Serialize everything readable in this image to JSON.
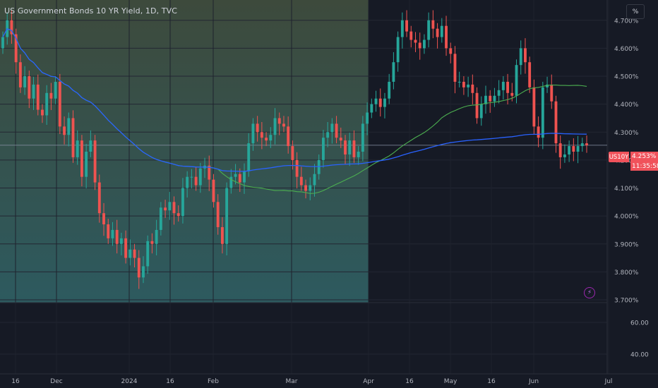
{
  "header": {
    "title": "US Government Bonds 10 YR Yield, 1D, TVC"
  },
  "toolbar": {
    "percent_button": "%"
  },
  "price_label": {
    "symbol": "US10Y",
    "price": "4.253%",
    "countdown": "11:35:58"
  },
  "colors": {
    "up": "#26a69a",
    "down": "#ef5350",
    "ma_short": "#4caf50",
    "ma_long": "#2962ff",
    "range_top": "#3c4a3c",
    "range_bottom": "#2e5a5e"
  },
  "chart_data": {
    "type": "candlestick",
    "title": "US Government Bonds 10 YR Yield, 1D, TVC",
    "x_ticks": [
      "16",
      "Dec",
      "2024",
      "16",
      "Feb",
      "Mar",
      "Apr",
      "16",
      "May",
      "16",
      "Jun",
      "Jul"
    ],
    "y_ticks": [
      "4.700%",
      "4.600%",
      "4.500%",
      "4.400%",
      "4.300%",
      "4.200%",
      "4.100%",
      "4.000%",
      "3.900%",
      "3.800%",
      "3.700%"
    ],
    "ylim": [
      3.7,
      4.76
    ],
    "indicator_pane": {
      "y_ticks": [
        "60.00",
        "40.00"
      ],
      "ylim": [
        32,
        72
      ]
    },
    "last_value": 4.253,
    "closes": [
      4.64,
      4.7,
      4.65,
      4.55,
      4.46,
      4.5,
      4.42,
      4.47,
      4.38,
      4.36,
      4.44,
      4.42,
      4.48,
      4.32,
      4.29,
      4.35,
      4.21,
      4.27,
      4.14,
      4.23,
      4.27,
      4.12,
      4.01,
      3.97,
      3.92,
      3.95,
      3.9,
      3.92,
      3.85,
      3.88,
      3.85,
      3.78,
      3.82,
      3.91,
      3.9,
      3.95,
      4.03,
      4.02,
      4.05,
      4.01,
      4.0,
      4.1,
      4.14,
      4.14,
      4.11,
      4.17,
      4.18,
      4.13,
      4.05,
      3.96,
      3.9,
      4.1,
      4.14,
      4.15,
      4.12,
      4.16,
      4.26,
      4.33,
      4.3,
      4.28,
      4.27,
      4.29,
      4.35,
      4.33,
      4.32,
      4.25,
      4.2,
      4.14,
      4.11,
      4.09,
      4.11,
      4.15,
      4.2,
      4.28,
      4.3,
      4.33,
      4.28,
      4.27,
      4.22,
      4.27,
      4.21,
      4.23,
      4.33,
      4.37,
      4.4,
      4.42,
      4.39,
      4.42,
      4.48,
      4.55,
      4.64,
      4.7,
      4.66,
      4.63,
      4.62,
      4.6,
      4.63,
      4.7,
      4.67,
      4.64,
      4.68,
      4.6,
      4.58,
      4.48,
      4.48,
      4.46,
      4.47,
      4.44,
      4.35,
      4.4,
      4.43,
      4.41,
      4.43,
      4.45,
      4.48,
      4.44,
      4.43,
      4.54,
      4.6,
      4.55,
      4.46,
      4.32,
      4.28,
      4.46,
      4.47,
      4.41,
      4.26,
      4.21,
      4.22,
      4.25,
      4.23,
      4.25,
      4.26,
      4.253
    ]
  }
}
